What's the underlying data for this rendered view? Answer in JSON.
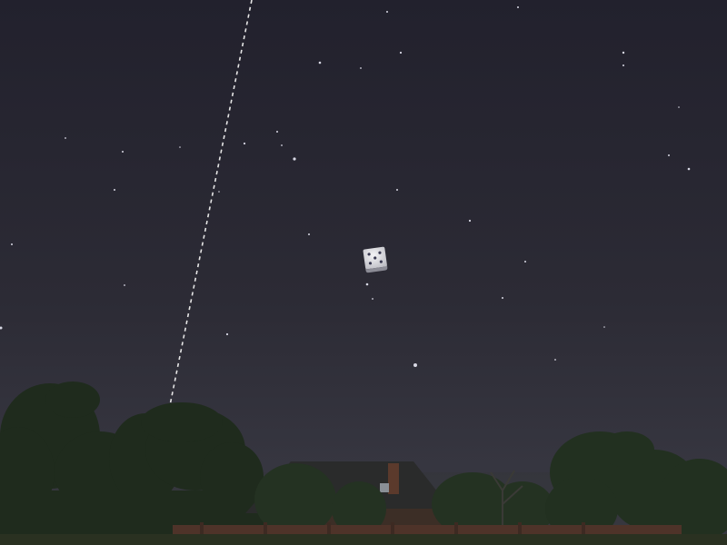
{
  "scene": {
    "description_tag": "night-sky-with-floating-die",
    "colors": {
      "sky_top": "#232230",
      "sky_mid": "#2d2c36",
      "sky_horizon": "#3a3a44",
      "tree_dark": "#1f2a1e",
      "tree_mid": "#2b3a28",
      "roof": "#2a2b2c",
      "wall": "#5a3a2e",
      "ground": "#2c3324",
      "dashed_line": "#e6e6e6",
      "die_face": "#e8e8ea",
      "die_pip": "#3a3a52"
    },
    "icons": {
      "die": "die-icon",
      "stars": "star-icon"
    }
  }
}
